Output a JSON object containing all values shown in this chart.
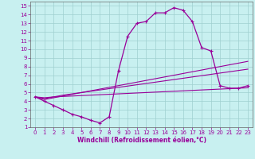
{
  "xlabel": "Windchill (Refroidissement éolien,°C)",
  "bg_color": "#c8f0f0",
  "line_color": "#990099",
  "xlim": [
    -0.5,
    23.5
  ],
  "ylim": [
    1,
    15.5
  ],
  "xticks": [
    0,
    1,
    2,
    3,
    4,
    5,
    6,
    7,
    8,
    9,
    10,
    11,
    12,
    13,
    14,
    15,
    16,
    17,
    18,
    19,
    20,
    21,
    22,
    23
  ],
  "yticks": [
    1,
    2,
    3,
    4,
    5,
    6,
    7,
    8,
    9,
    10,
    11,
    12,
    13,
    14,
    15
  ],
  "main_curve_x": [
    0,
    1,
    2,
    3,
    4,
    5,
    6,
    7,
    8,
    9,
    10,
    11,
    12,
    13,
    14,
    15,
    16,
    17,
    18,
    19,
    20,
    21,
    22,
    23
  ],
  "main_curve_y": [
    4.5,
    4.0,
    3.5,
    3.0,
    2.5,
    2.2,
    1.8,
    1.5,
    2.2,
    7.5,
    11.5,
    13.0,
    13.2,
    14.2,
    14.2,
    14.8,
    14.5,
    13.2,
    10.2,
    9.8,
    5.8,
    5.5,
    5.5,
    5.8
  ],
  "upper_line_x": [
    0,
    1,
    2,
    3,
    4,
    5,
    6,
    7,
    8,
    9,
    10,
    11,
    12,
    13,
    14,
    15,
    16,
    17,
    18,
    19,
    20,
    21,
    22,
    23
  ],
  "upper_line_y": [
    4.5,
    4.2,
    4.4,
    4.6,
    4.8,
    5.0,
    5.2,
    5.4,
    5.6,
    5.8,
    6.0,
    6.2,
    6.4,
    6.6,
    6.8,
    7.0,
    7.2,
    7.4,
    7.6,
    7.8,
    8.0,
    8.2,
    8.4,
    8.6
  ],
  "mid_line_x": [
    0,
    1,
    2,
    3,
    4,
    5,
    6,
    7,
    8,
    9,
    10,
    11,
    12,
    13,
    14,
    15,
    16,
    17,
    18,
    19,
    20,
    21,
    22,
    23
  ],
  "mid_line_y": [
    4.5,
    4.3,
    4.5,
    4.7,
    4.85,
    5.0,
    5.15,
    5.3,
    5.45,
    5.6,
    5.75,
    5.9,
    6.05,
    6.2,
    6.35,
    6.5,
    6.65,
    6.8,
    6.95,
    7.1,
    7.25,
    7.4,
    7.55,
    7.7
  ],
  "lower_line_x": [
    0,
    1,
    2,
    3,
    4,
    5,
    6,
    7,
    8,
    9,
    10,
    11,
    12,
    13,
    14,
    15,
    16,
    17,
    18,
    19,
    20,
    21,
    22,
    23
  ],
  "lower_line_y": [
    4.5,
    4.4,
    4.5,
    4.55,
    4.6,
    4.65,
    4.7,
    4.75,
    4.8,
    4.85,
    4.9,
    4.95,
    5.0,
    5.05,
    5.1,
    5.15,
    5.2,
    5.25,
    5.3,
    5.35,
    5.4,
    5.45,
    5.5,
    5.55
  ]
}
